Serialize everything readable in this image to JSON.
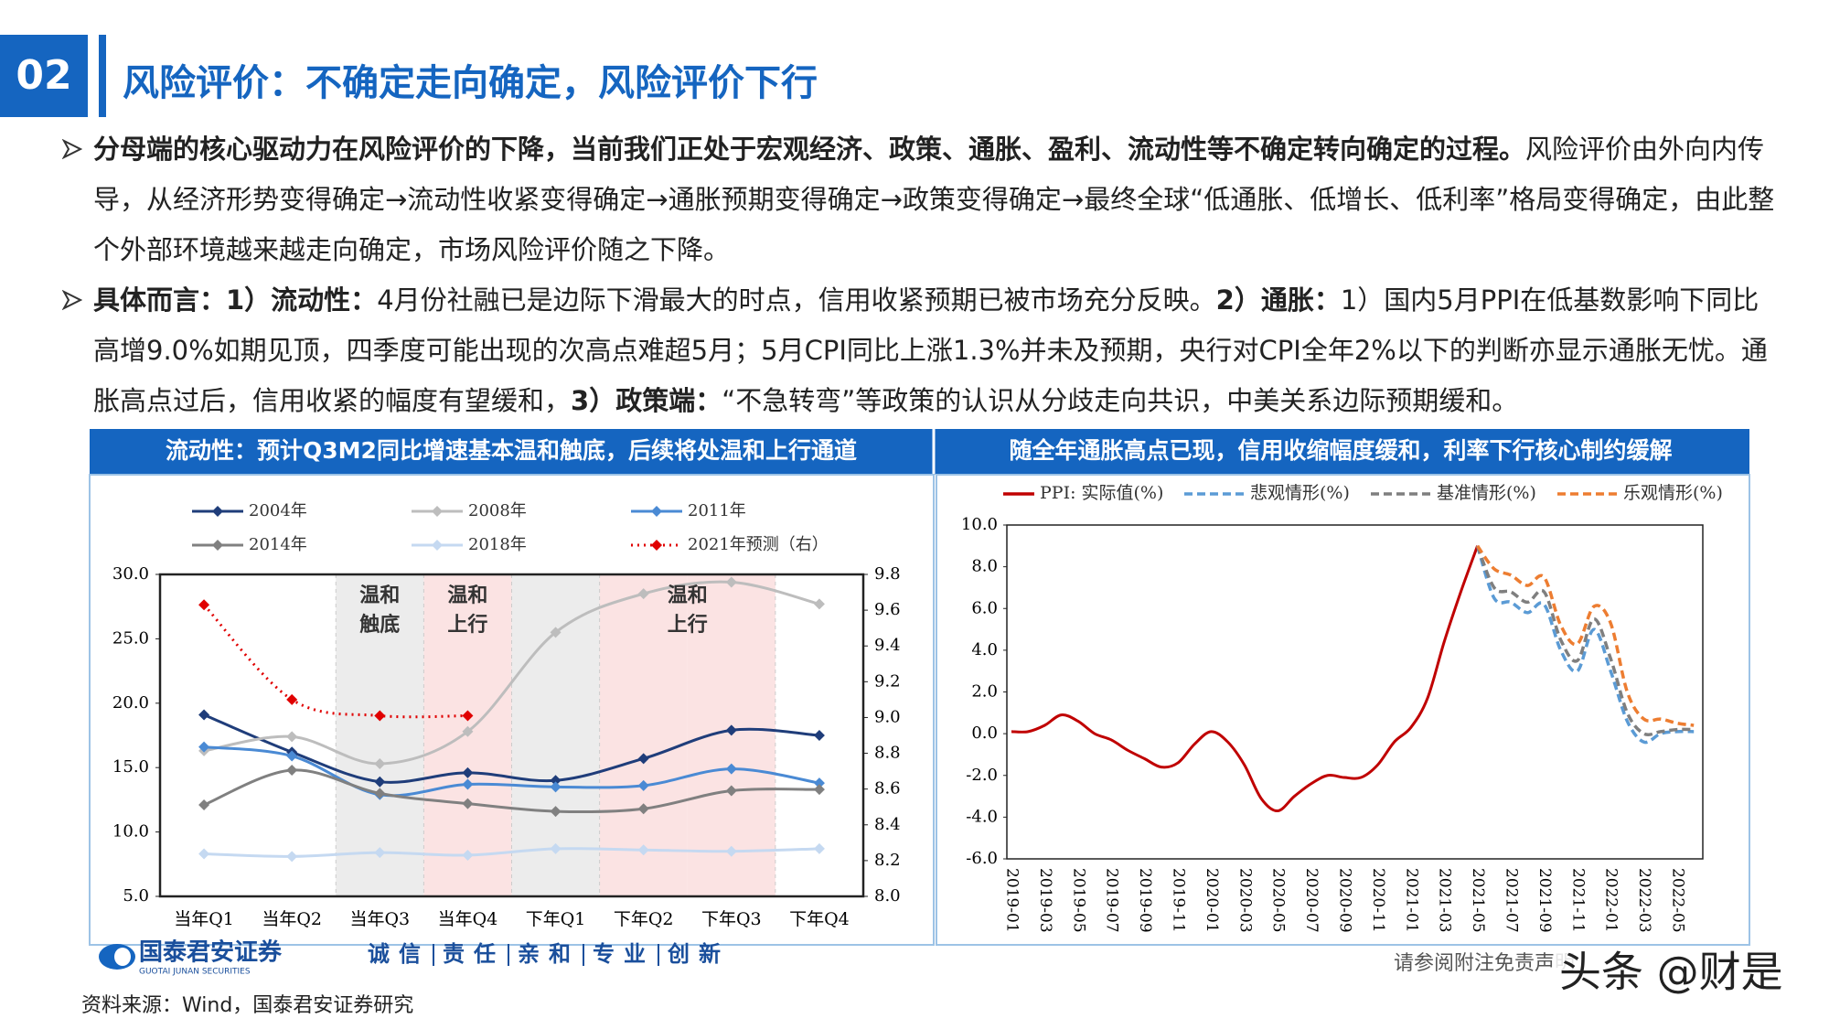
{
  "header": {
    "number": "02",
    "title": "风险评价：不确定走向确定，风险评价下行"
  },
  "body": {
    "paragraphs": [
      [
        {
          "text": "分母端的核心驱动力在风险评价的下降，当前我们正处于宏观经济、政策、通胀、盈利、流动性等不确定转向确定的过程。",
          "bold": true
        },
        {
          "text": "风险评价由外向内传导，从经济形势变得确定→流动性收紧变得确定→通胀预期变得确定→政策变得确定→最终全球“低通胀、低增长、低利率”格局变得确定，由此整个外部环境越来越走向确定，市场风险评价随之下降。",
          "bold": false
        }
      ],
      [
        {
          "text": "具体而言：1）流动性：",
          "bold": true
        },
        {
          "text": "4月份社融已是边际下滑最大的时点，信用收紧预期已被市场充分反映。",
          "bold": false
        },
        {
          "text": "2）通胀：",
          "bold": true
        },
        {
          "text": "1）国内5月PPI在低基数影响下同比高增9.0%如期见顶，四季度可能出现的次高点难超5月；5月CPI同比上涨1.3%并未及预期，央行对CPI全年2%以下的判断亦显示通胀无忧。通胀高点过后，信用收紧的幅度有望缓和，",
          "bold": false
        },
        {
          "text": "3）政策端：",
          "bold": true
        },
        {
          "text": "“不急转弯”等政策的认识从分歧走向共识，中美关系边际预期缓和。",
          "bold": false
        }
      ]
    ]
  },
  "chart_data": [
    {
      "type": "line",
      "title": "流动性：预计Q3M2同比增速基本温和触底，后续将处温和上行通道",
      "categories": [
        "当年Q1",
        "当年Q2",
        "当年Q3",
        "当年Q4",
        "下年Q1",
        "下年Q2",
        "下年Q3",
        "下年Q4"
      ],
      "series": [
        {
          "name": "2004年",
          "color": "#1f3d7a",
          "style": "solid",
          "values": [
            19.1,
            16.2,
            13.9,
            14.6,
            14.0,
            15.7,
            17.9,
            17.5
          ]
        },
        {
          "name": "2008年",
          "color": "#bdbdbd",
          "style": "solid",
          "values": [
            16.3,
            17.4,
            15.3,
            17.8,
            25.5,
            28.5,
            29.4,
            27.7
          ]
        },
        {
          "name": "2011年",
          "color": "#4a8ad4",
          "style": "solid",
          "values": [
            16.6,
            15.9,
            12.9,
            13.7,
            13.5,
            13.6,
            14.9,
            13.8
          ]
        },
        {
          "name": "2014年",
          "color": "#808080",
          "style": "solid",
          "values": [
            12.1,
            14.8,
            13.0,
            12.2,
            11.6,
            11.8,
            13.2,
            13.3
          ]
        },
        {
          "name": "2018年",
          "color": "#c5d9f1",
          "style": "solid",
          "values": [
            8.3,
            8.1,
            8.4,
            8.2,
            8.7,
            8.6,
            8.5,
            8.7
          ]
        },
        {
          "name": "2021年预测（右）",
          "color": "#e00000",
          "style": "dotted",
          "axis": "y2",
          "values": [
            9.63,
            9.1,
            9.01,
            9.01,
            null,
            null,
            null,
            null
          ]
        }
      ],
      "markers": true,
      "smooth": true,
      "ylim": [
        5,
        30
      ],
      "yticks": [
        {
          "value": 5,
          "label": "5.0"
        },
        {
          "value": 10,
          "label": "10.0"
        },
        {
          "value": 15,
          "label": "15.0"
        },
        {
          "value": 20,
          "label": "20.0"
        },
        {
          "value": 25,
          "label": "25.0"
        },
        {
          "value": 30,
          "label": "30.0"
        }
      ],
      "y2lim": [
        8,
        9.8
      ],
      "y2ticks": [
        {
          "value": 8,
          "label": "8.0"
        },
        8.2,
        8.4,
        8.6,
        8.8,
        {
          "value": 9,
          "label": "9.0"
        },
        9.2,
        9.4,
        9.6,
        9.8
      ],
      "annotations": [
        [
          "温和",
          "触底"
        ],
        [
          "温和",
          "上行"
        ],
        [
          "温和",
          "上行"
        ]
      ]
    },
    {
      "type": "line",
      "title": "随全年通胀高点已现，信用收缩幅度缓和，利率下行核心制约缓解",
      "categories": [
        "2019-01",
        null,
        "2019-03",
        null,
        "2019-05",
        null,
        "2019-07",
        null,
        "2019-09",
        null,
        "2019-11",
        null,
        "2020-01",
        null,
        "2020-03",
        null,
        "2020-05",
        null,
        "2020-07",
        null,
        "2020-09",
        null,
        "2020-11",
        null,
        "2021-01",
        null,
        "2021-03",
        null,
        "2021-05",
        null,
        "2021-07",
        null,
        "2021-09",
        null,
        "2021-11",
        null,
        "2022-01",
        null,
        "2022-03",
        null,
        "2022-05",
        null
      ],
      "series": [
        {
          "name": "PPI: 实际值(%)",
          "color": "#c00000",
          "style": "solid",
          "values": [
            0.1,
            0.1,
            0.4,
            0.9,
            0.6,
            0.0,
            -0.3,
            -0.8,
            -1.2,
            -1.6,
            -1.4,
            -0.5,
            0.1,
            -0.4,
            -1.5,
            -3.1,
            -3.7,
            -3.0,
            -2.4,
            -2.0,
            -2.1,
            -2.1,
            -1.5,
            -0.4,
            0.3,
            1.7,
            4.4,
            6.8,
            9.0,
            null,
            null,
            null,
            null,
            null,
            null,
            null,
            null,
            null,
            null,
            null,
            null,
            null
          ]
        },
        {
          "name": "悲观情形(%)",
          "color": "#5b9bd5",
          "style": "dashed",
          "values": [
            null,
            null,
            null,
            null,
            null,
            null,
            null,
            null,
            null,
            null,
            null,
            null,
            null,
            null,
            null,
            null,
            null,
            null,
            null,
            null,
            null,
            null,
            null,
            null,
            null,
            null,
            null,
            null,
            9.0,
            6.5,
            6.3,
            5.8,
            6.2,
            4.0,
            3.0,
            5.0,
            3.0,
            0.6,
            -0.4,
            0.0,
            0.1,
            0.1
          ]
        },
        {
          "name": "基准情形(%)",
          "color": "#7f7f7f",
          "style": "dashed",
          "values": [
            null,
            null,
            null,
            null,
            null,
            null,
            null,
            null,
            null,
            null,
            null,
            null,
            null,
            null,
            null,
            null,
            null,
            null,
            null,
            null,
            null,
            null,
            null,
            null,
            null,
            null,
            null,
            null,
            9.0,
            7.0,
            6.8,
            6.3,
            6.8,
            4.5,
            3.5,
            5.5,
            3.6,
            1.0,
            0.0,
            0.1,
            0.2,
            0.2
          ]
        },
        {
          "name": "乐观情形(%)",
          "color": "#ed7d31",
          "style": "dashed",
          "values": [
            null,
            null,
            null,
            null,
            null,
            null,
            null,
            null,
            null,
            null,
            null,
            null,
            null,
            null,
            null,
            null,
            null,
            null,
            null,
            null,
            null,
            null,
            null,
            null,
            null,
            null,
            null,
            null,
            9.0,
            7.9,
            7.6,
            7.1,
            7.5,
            5.2,
            4.3,
            6.1,
            5.3,
            2.0,
            0.7,
            0.7,
            0.5,
            0.4
          ]
        }
      ],
      "markers": false,
      "smooth": true,
      "ylim": [
        -6,
        10
      ],
      "yticks": [
        {
          "value": -6,
          "label": "-6.0"
        },
        {
          "value": -4,
          "label": "-4.0"
        },
        {
          "value": -2,
          "label": "-2.0"
        },
        {
          "value": 0,
          "label": "0.0"
        },
        {
          "value": 2,
          "label": "2.0"
        },
        {
          "value": 4,
          "label": "4.0"
        },
        {
          "value": 6,
          "label": "6.0"
        },
        {
          "value": 8,
          "label": "8.0"
        },
        {
          "value": 10,
          "label": "10.0"
        }
      ]
    }
  ],
  "footer": {
    "logo_cn": "国泰君安证券",
    "logo_en": "GUOTAI JUNAN SECURITIES",
    "values": [
      "诚信",
      "责任",
      "亲和",
      "专业",
      "创新"
    ],
    "disclaimer": "请参阅附注免责声明",
    "watermark": "头条 @财是",
    "source": "资料来源：Wind，国泰君安证券研究"
  }
}
